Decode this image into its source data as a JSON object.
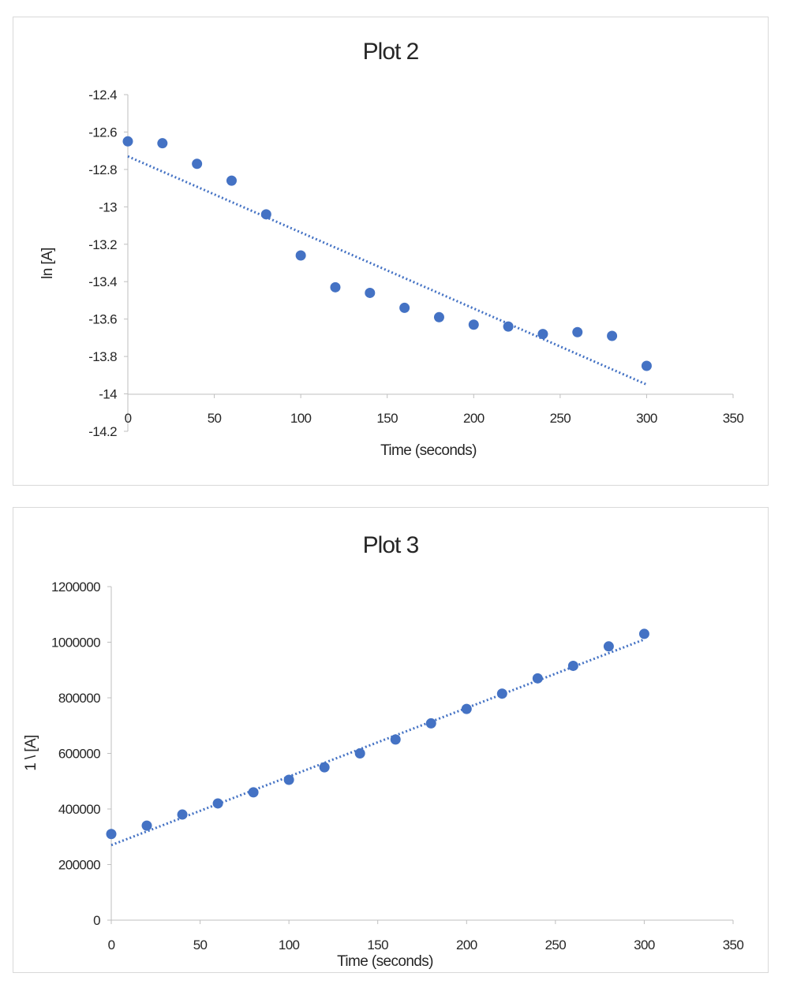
{
  "chart_data": [
    {
      "type": "scatter",
      "title": "Plot 2",
      "xlabel": "Time (seconds)",
      "ylabel": "ln [A]",
      "xlim": [
        0,
        350
      ],
      "ylim": [
        -14.2,
        -12.4
      ],
      "x_ticks": [
        "0",
        "50",
        "100",
        "150",
        "200",
        "250",
        "300",
        "350"
      ],
      "y_ticks": [
        "-12.4",
        "-12.6",
        "-12.8",
        "-13",
        "-13.2",
        "-13.4",
        "-13.6",
        "-13.8",
        "-14",
        "-14.2"
      ],
      "grid": false,
      "legend": "none",
      "marker_color": "#4472C4",
      "series": [
        {
          "x": [
            0,
            20,
            40,
            60,
            80,
            100,
            120,
            140,
            160,
            180,
            200,
            220,
            240,
            260,
            280,
            300
          ],
          "y": [
            -12.65,
            -12.66,
            -12.77,
            -12.86,
            -13.04,
            -13.26,
            -13.43,
            -13.46,
            -13.54,
            -13.59,
            -13.63,
            -13.64,
            -13.68,
            -13.67,
            -13.69,
            -13.85
          ]
        }
      ],
      "trendline": {
        "style": "dotted",
        "type": "linear",
        "x": [
          0,
          300
        ],
        "y": [
          -12.73,
          -13.95
        ]
      }
    },
    {
      "type": "scatter",
      "title": "Plot 3",
      "xlabel": "Time (seconds)",
      "ylabel": "1 \\ [A]",
      "xlim": [
        0,
        350
      ],
      "ylim": [
        0,
        1200000
      ],
      "x_ticks": [
        "0",
        "50",
        "100",
        "150",
        "200",
        "250",
        "300",
        "350"
      ],
      "y_ticks": [
        "0",
        "200000",
        "400000",
        "600000",
        "800000",
        "1000000",
        "1200000"
      ],
      "grid": false,
      "legend": "none",
      "marker_color": "#4472C4",
      "series": [
        {
          "x": [
            0,
            20,
            40,
            60,
            80,
            100,
            120,
            140,
            160,
            180,
            200,
            220,
            240,
            260,
            280,
            300
          ],
          "y": [
            310000,
            340000,
            380000,
            420000,
            460000,
            505000,
            550000,
            600000,
            650000,
            708000,
            760000,
            815000,
            870000,
            915000,
            985000,
            1030000
          ]
        }
      ],
      "trendline": {
        "style": "dotted",
        "type": "linear",
        "x": [
          0,
          300
        ],
        "y": [
          270000,
          1010000
        ]
      }
    }
  ]
}
